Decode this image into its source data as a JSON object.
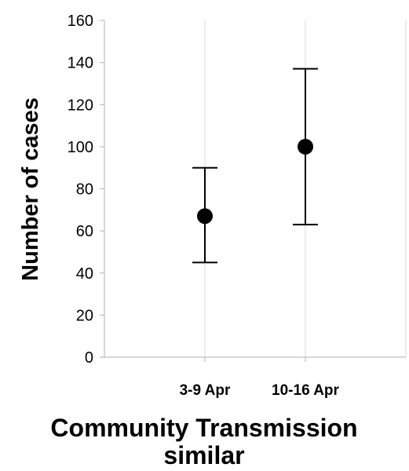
{
  "chart_data": {
    "type": "scatter",
    "error_bars": true,
    "categories": [
      "3-9 Apr",
      "10-16 Apr"
    ],
    "series": [
      {
        "values": [
          67,
          100
        ],
        "lower": [
          45,
          63
        ],
        "upper": [
          90,
          137
        ]
      }
    ],
    "ylabel": "Number of cases",
    "xlabel_lines": [
      "Community Transmission",
      "similar"
    ],
    "ylim": [
      0,
      160
    ],
    "y_ticks": [
      0,
      20,
      40,
      60,
      80,
      100,
      120,
      140,
      160
    ],
    "grid": "vertical-category-separators",
    "legend": "none",
    "colors": {
      "marker": "#000000",
      "axis": "#bfbfbf",
      "grid": "#d9d9d9"
    }
  }
}
